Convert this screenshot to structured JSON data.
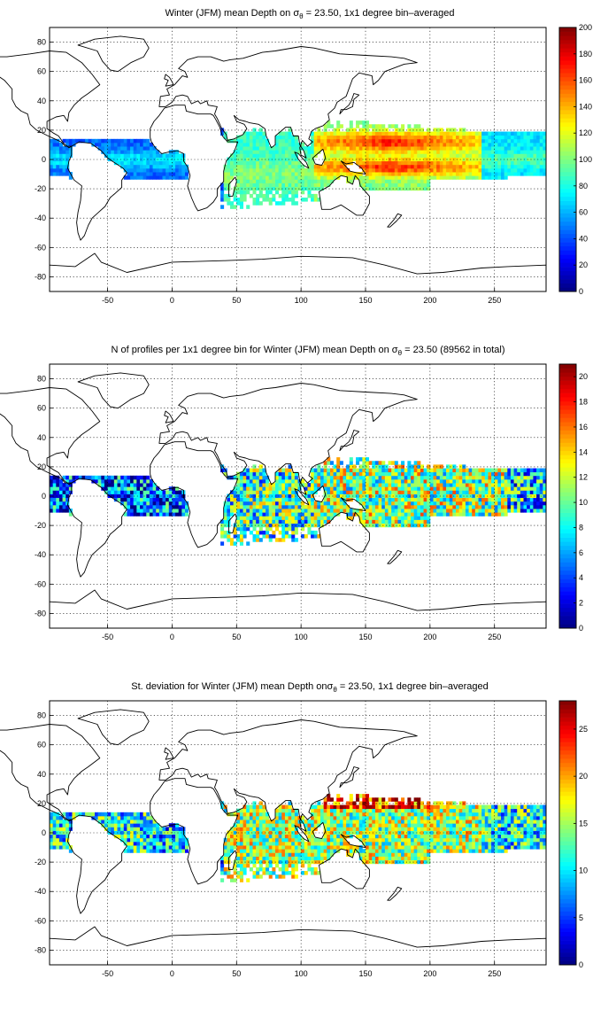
{
  "chart_data": [
    {
      "type": "heatmap",
      "title_pre": "Winter (JFM) mean Depth on ",
      "title_sym": "σ",
      "title_sub": "θ",
      "title_post": " = 23.50, 1x1 degree bin–averaged",
      "variable": "mean_depth",
      "x_ticks": [
        "-50",
        "0",
        "50",
        "100",
        "150",
        "200",
        "250"
      ],
      "y_ticks": [
        "80",
        "60",
        "40",
        "20",
        "0",
        "-20",
        "-40",
        "-60",
        "-80"
      ],
      "xlim": [
        -95,
        290
      ],
      "ylim": [
        -90,
        90
      ],
      "grid": true,
      "colorbar": {
        "min": 0,
        "max": 200,
        "ticks": [
          "0",
          "20",
          "40",
          "60",
          "80",
          "100",
          "120",
          "140",
          "160",
          "180",
          "200"
        ]
      },
      "colormap": "jet"
    },
    {
      "type": "heatmap",
      "title_pre": "N of profiles per 1x1 degree bin for Winter (JFM) mean Depth on ",
      "title_sym": "σ",
      "title_sub": "θ",
      "title_post": " = 23.50 (89562 in total)",
      "variable": "count",
      "x_ticks": [
        "-50",
        "0",
        "50",
        "100",
        "150",
        "200",
        "250"
      ],
      "y_ticks": [
        "80",
        "60",
        "40",
        "20",
        "0",
        "-20",
        "-40",
        "-60",
        "-80"
      ],
      "xlim": [
        -95,
        290
      ],
      "ylim": [
        -90,
        90
      ],
      "grid": true,
      "colorbar": {
        "min": 0,
        "max": 21,
        "ticks": [
          "0",
          "2",
          "4",
          "6",
          "8",
          "10",
          "12",
          "14",
          "16",
          "18",
          "20"
        ]
      },
      "colormap": "jet"
    },
    {
      "type": "heatmap",
      "title_pre": "St. deviation for Winter (JFM) mean Depth on",
      "title_sym": "σ",
      "title_sub": "θ",
      "title_post": " = 23.50, 1x1 degree bin–averaged",
      "variable": "std",
      "x_ticks": [
        "-50",
        "0",
        "50",
        "100",
        "150",
        "200",
        "250"
      ],
      "y_ticks": [
        "80",
        "60",
        "40",
        "20",
        "0",
        "-20",
        "-40",
        "-60",
        "-80"
      ],
      "xlim": [
        -95,
        290
      ],
      "ylim": [
        -90,
        90
      ],
      "grid": true,
      "colorbar": {
        "min": 0,
        "max": 28,
        "ticks": [
          "0",
          "5",
          "10",
          "15",
          "20",
          "25"
        ]
      },
      "colormap": "jet"
    }
  ]
}
